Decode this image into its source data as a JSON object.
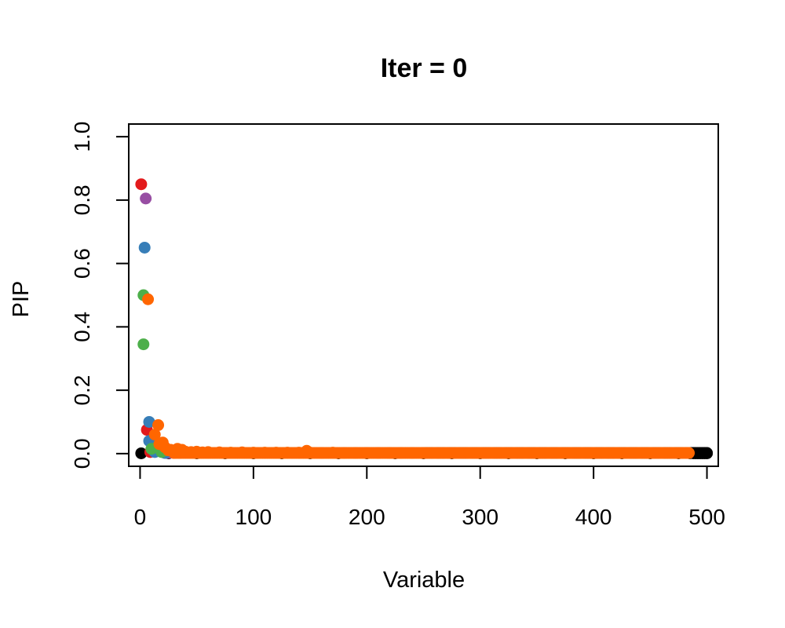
{
  "chart_data": {
    "type": "scatter",
    "title": "Iter = 0",
    "xlabel": "Variable",
    "ylabel": "PIP",
    "xlim": [
      -10,
      510
    ],
    "ylim": [
      -0.04,
      1.04
    ],
    "x_ticks": [
      0,
      100,
      200,
      300,
      400,
      500
    ],
    "y_ticks": [
      0.0,
      0.2,
      0.4,
      0.6,
      0.8,
      1.0
    ],
    "x_tick_labels": [
      "0",
      "100",
      "200",
      "300",
      "400",
      "500"
    ],
    "y_tick_labels": [
      "0.0",
      "0.2",
      "0.4",
      "0.6",
      "0.8",
      "1.0"
    ],
    "grid": false,
    "legend": "none",
    "series": [
      {
        "color": "#000000",
        "x": [
          1,
          25,
          50,
          75,
          100,
          125,
          150,
          175,
          200,
          225,
          250,
          275,
          300,
          325,
          350,
          375,
          400,
          425,
          450,
          475,
          485,
          488,
          490,
          492,
          494,
          496,
          498,
          500
        ],
        "y": [
          0.001,
          0.001,
          0.001,
          0.001,
          0.001,
          0.001,
          0.001,
          0.001,
          0.001,
          0.001,
          0.001,
          0.001,
          0.001,
          0.001,
          0.001,
          0.001,
          0.001,
          0.001,
          0.001,
          0.001,
          0.001,
          0.001,
          0.001,
          0.001,
          0.001,
          0.001,
          0.001,
          0.001
        ]
      },
      {
        "color": "#e31a1c",
        "x": [
          1,
          6,
          9,
          14,
          18,
          23,
          30
        ],
        "y": [
          0.85,
          0.075,
          0.005,
          0.02,
          0.01,
          0.003,
          0.002
        ]
      },
      {
        "color": "#984ea3",
        "x": [
          5,
          16,
          20,
          24,
          28,
          35
        ],
        "y": [
          0.805,
          0.01,
          0.005,
          0.002,
          0.003,
          0.002
        ]
      },
      {
        "color": "#377eb8",
        "x": [
          4,
          8,
          8,
          13,
          22
        ],
        "y": [
          0.65,
          0.1,
          0.04,
          0.005,
          0.002
        ]
      },
      {
        "color": "#4daf4a",
        "x": [
          3,
          3,
          10,
          15,
          19
        ],
        "y": [
          0.5,
          0.345,
          0.015,
          0.02,
          0.005
        ]
      },
      {
        "color": "#ff6600",
        "x": [
          7,
          13,
          16,
          17,
          20,
          22,
          25,
          27,
          30,
          33,
          35,
          37,
          40,
          45,
          50,
          55,
          60,
          70,
          80,
          90,
          100,
          110,
          120,
          130,
          140,
          147,
          150,
          160,
          170,
          180,
          190,
          200,
          210,
          220,
          230,
          240,
          250,
          260,
          270,
          280,
          290,
          300,
          310,
          320,
          330,
          340,
          350,
          360,
          370,
          380,
          390,
          400,
          410,
          420,
          430,
          440,
          450,
          460,
          470,
          480,
          484
        ],
        "y": [
          0.487,
          0.06,
          0.09,
          0.03,
          0.035,
          0.02,
          0.01,
          0.012,
          0.008,
          0.015,
          0.01,
          0.012,
          0.006,
          0.005,
          0.006,
          0.004,
          0.005,
          0.004,
          0.003,
          0.004,
          0.003,
          0.003,
          0.003,
          0.003,
          0.003,
          0.009,
          0.003,
          0.002,
          0.003,
          0.002,
          0.002,
          0.002,
          0.002,
          0.002,
          0.002,
          0.002,
          0.002,
          0.002,
          0.002,
          0.002,
          0.002,
          0.002,
          0.002,
          0.002,
          0.002,
          0.002,
          0.002,
          0.002,
          0.002,
          0.002,
          0.002,
          0.002,
          0.002,
          0.002,
          0.002,
          0.002,
          0.002,
          0.002,
          0.002,
          0.002,
          0.002
        ]
      }
    ]
  }
}
